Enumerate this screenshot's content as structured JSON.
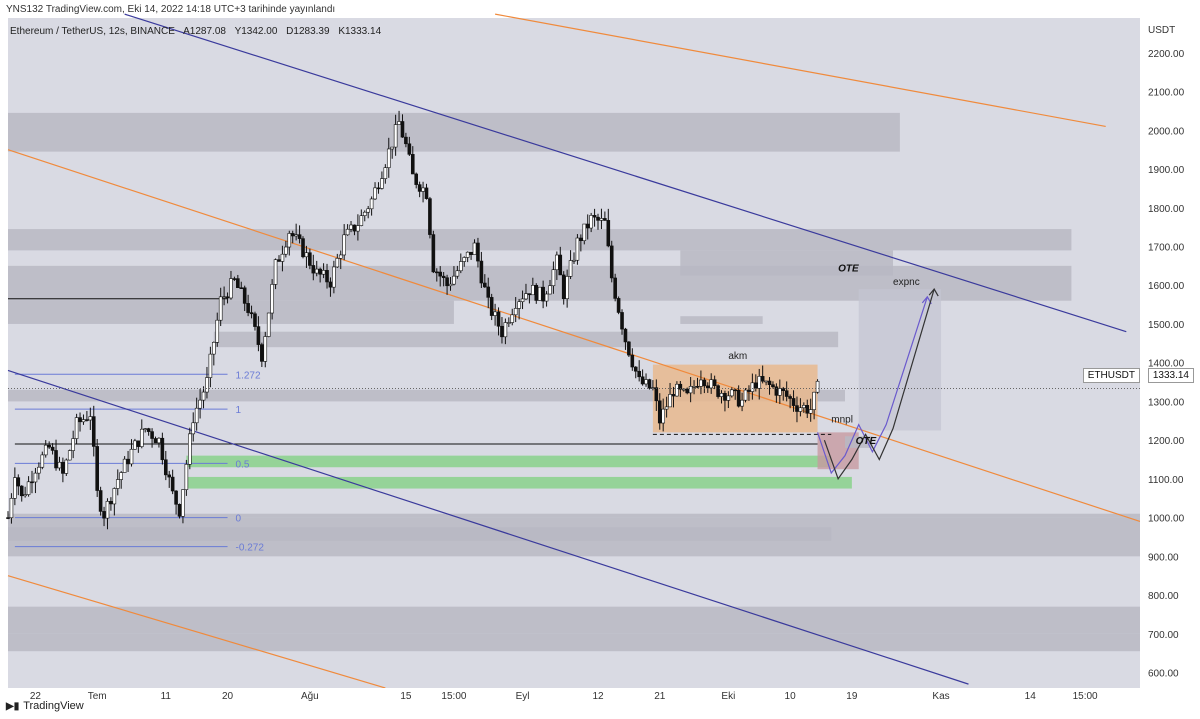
{
  "header": {
    "publish_line": "YNS132 TradingView.com, Eki 14, 2022 14:18 UTC+3 tarihinde yayınlandı",
    "symbol_line": "Ethereum / TetherUS, 12s, BINANCE",
    "ohlc": {
      "open": "A1287.08",
      "high": "Y1342.00",
      "low": "D1283.39",
      "close": "K1333.14"
    }
  },
  "footer": {
    "brand": "TradingView"
  },
  "price_axis": {
    "unit": "USDT",
    "symbol_tag": "ETHUSDT",
    "last_price": "1333.14"
  },
  "colors": {
    "background": "#d9dae3",
    "candle": "#111111",
    "zone_gray": "#b8b9c3",
    "zone_green": "#8dd18f",
    "zone_orange": "#e8b88e",
    "zone_pink": "#c79aa0",
    "orange_line": "#f08a3c",
    "blue_line": "#3a3a9c",
    "fib_line": "#6a7bd6"
  },
  "chart_data": {
    "type": "candlestick",
    "ylim": [
      560,
      2290
    ],
    "ylabel_unit": "USDT",
    "y_ticks": [
      600,
      700,
      800,
      900,
      1000,
      1100,
      1200,
      1300,
      1400,
      1500,
      1600,
      1700,
      1800,
      1900,
      2000,
      2100,
      2200
    ],
    "x_ticks": [
      {
        "label": "22",
        "date": "2022-06-22"
      },
      {
        "label": "Tem",
        "date": "2022-07-01"
      },
      {
        "label": "11",
        "date": "2022-07-11"
      },
      {
        "label": "20",
        "date": "2022-07-20"
      },
      {
        "label": "Ağu",
        "date": "2022-08-01"
      },
      {
        "label": "15",
        "date": "2022-08-15"
      },
      {
        "label": "15:00",
        "date": "2022-08-22"
      },
      {
        "label": "Eyl",
        "date": "2022-09-01"
      },
      {
        "label": "12",
        "date": "2022-09-12"
      },
      {
        "label": "21",
        "date": "2022-09-21"
      },
      {
        "label": "Eki",
        "date": "2022-10-01"
      },
      {
        "label": "10",
        "date": "2022-10-10"
      },
      {
        "label": "19",
        "date": "2022-10-19"
      },
      {
        "label": "Kas",
        "date": "2022-11-01"
      },
      {
        "label": "14",
        "date": "2022-11-14"
      },
      {
        "label": "15:00",
        "date": "2022-11-22"
      }
    ],
    "price_path": [
      [
        "2022-06-18",
        1000
      ],
      [
        "2022-06-19",
        1120
      ],
      [
        "2022-06-20",
        1050
      ],
      [
        "2022-06-22",
        1130
      ],
      [
        "2022-06-24",
        1180
      ],
      [
        "2022-06-26",
        1110
      ],
      [
        "2022-06-28",
        1240
      ],
      [
        "2022-06-30",
        1270
      ],
      [
        "2022-07-01",
        1060
      ],
      [
        "2022-07-02",
        1010
      ],
      [
        "2022-07-04",
        1100
      ],
      [
        "2022-07-06",
        1170
      ],
      [
        "2022-07-08",
        1230
      ],
      [
        "2022-07-10",
        1200
      ],
      [
        "2022-07-12",
        1060
      ],
      [
        "2022-07-13",
        1020
      ],
      [
        "2022-07-15",
        1260
      ],
      [
        "2022-07-17",
        1350
      ],
      [
        "2022-07-19",
        1560
      ],
      [
        "2022-07-21",
        1610
      ],
      [
        "2022-07-23",
        1540
      ],
      [
        "2022-07-25",
        1420
      ],
      [
        "2022-07-27",
        1650
      ],
      [
        "2022-07-29",
        1740
      ],
      [
        "2022-07-31",
        1690
      ],
      [
        "2022-08-02",
        1630
      ],
      [
        "2022-08-04",
        1610
      ],
      [
        "2022-08-06",
        1720
      ],
      [
        "2022-08-08",
        1760
      ],
      [
        "2022-08-10",
        1820
      ],
      [
        "2022-08-12",
        1920
      ],
      [
        "2022-08-14",
        2020
      ],
      [
        "2022-08-15",
        1960
      ],
      [
        "2022-08-16",
        1880
      ],
      [
        "2022-08-18",
        1840
      ],
      [
        "2022-08-19",
        1650
      ],
      [
        "2022-08-21",
        1600
      ],
      [
        "2022-08-23",
        1650
      ],
      [
        "2022-08-25",
        1700
      ],
      [
        "2022-08-27",
        1550
      ],
      [
        "2022-08-29",
        1480
      ],
      [
        "2022-08-31",
        1560
      ],
      [
        "2022-09-02",
        1590
      ],
      [
        "2022-09-04",
        1570
      ],
      [
        "2022-09-06",
        1660
      ],
      [
        "2022-09-07",
        1580
      ],
      [
        "2022-09-09",
        1710
      ],
      [
        "2022-09-11",
        1770
      ],
      [
        "2022-09-13",
        1760
      ],
      [
        "2022-09-14",
        1620
      ],
      [
        "2022-09-16",
        1460
      ],
      [
        "2022-09-18",
        1350
      ],
      [
        "2022-09-20",
        1330
      ],
      [
        "2022-09-21",
        1250
      ],
      [
        "2022-09-23",
        1330
      ],
      [
        "2022-09-25",
        1310
      ],
      [
        "2022-09-27",
        1370
      ],
      [
        "2022-09-29",
        1330
      ],
      [
        "2022-10-01",
        1320
      ],
      [
        "2022-10-03",
        1300
      ],
      [
        "2022-10-05",
        1350
      ],
      [
        "2022-10-07",
        1340
      ],
      [
        "2022-10-09",
        1320
      ],
      [
        "2022-10-11",
        1290
      ],
      [
        "2022-10-13",
        1280
      ],
      [
        "2022-10-14",
        1333
      ]
    ],
    "annotations": [
      "1.272",
      "1",
      "0.5",
      "0",
      "-0.272",
      "akm",
      "mnpl",
      "OTE",
      "OTE",
      "expnc"
    ],
    "fib_levels": [
      {
        "label": "1.272",
        "value": 1370
      },
      {
        "label": "1",
        "value": 1280
      },
      {
        "label": "0.5",
        "value": 1140
      },
      {
        "label": "0",
        "value": 1000
      },
      {
        "label": "-0.272",
        "value": 925
      }
    ],
    "zones": [
      {
        "kind": "gray",
        "y1": 1945,
        "y2": 2045,
        "x1": "2022-06-18",
        "x2": "2022-10-26"
      },
      {
        "kind": "gray",
        "y1": 1690,
        "y2": 1745,
        "x1": "2022-06-18",
        "x2": "2022-11-20"
      },
      {
        "kind": "gray",
        "y1": 1560,
        "y2": 1650,
        "x1": "2022-06-18",
        "x2": "2022-11-20"
      },
      {
        "kind": "gray",
        "y1": 1500,
        "y2": 1560,
        "x1": "2022-06-18",
        "x2": "2022-08-22"
      },
      {
        "kind": "gray",
        "y1": 1440,
        "y2": 1480,
        "x1": "2022-07-18",
        "x2": "2022-10-17"
      },
      {
        "kind": "gray",
        "y1": 1300,
        "y2": 1330,
        "x1": "2022-06-18",
        "x2": "2022-10-18"
      },
      {
        "kind": "gray",
        "y1": 1000,
        "y2": 1010,
        "x1": "2022-06-18",
        "x2": "2022-11-30"
      },
      {
        "kind": "gray",
        "y1": 900,
        "y2": 1000,
        "x1": "2022-06-18",
        "x2": "2022-11-30"
      },
      {
        "kind": "gray",
        "y1": 940,
        "y2": 975,
        "x1": "2022-06-18",
        "x2": "2022-10-16"
      },
      {
        "kind": "gray",
        "y1": 700,
        "y2": 770,
        "x1": "2022-06-18",
        "x2": "2022-11-30"
      },
      {
        "kind": "gray",
        "y1": 655,
        "y2": 700,
        "x1": "2022-06-18",
        "x2": "2022-11-30"
      },
      {
        "kind": "gray",
        "y1": 1625,
        "y2": 1690,
        "x1": "2022-09-24",
        "x2": "2022-10-25"
      },
      {
        "kind": "gray",
        "y1": 1500,
        "y2": 1520,
        "x1": "2022-09-24",
        "x2": "2022-10-06"
      },
      {
        "kind": "green",
        "y1": 1130,
        "y2": 1160,
        "x1": "2022-07-14",
        "x2": "2022-10-16"
      },
      {
        "kind": "green",
        "y1": 1075,
        "y2": 1105,
        "x1": "2022-07-14",
        "x2": "2022-10-19"
      },
      {
        "kind": "orange",
        "y1": 1220,
        "y2": 1395,
        "x1": "2022-09-20",
        "x2": "2022-10-14"
      },
      {
        "kind": "pink",
        "y1": 1125,
        "y2": 1220,
        "x1": "2022-10-14",
        "x2": "2022-10-20"
      },
      {
        "kind": "gray",
        "y1": 1180,
        "y2": 1210,
        "x1": "2022-10-18",
        "x2": "2022-10-22"
      },
      {
        "kind": "light",
        "y1": 1225,
        "y2": 1590,
        "x1": "2022-10-20",
        "x2": "2022-11-01"
      }
    ],
    "trend_lines": [
      {
        "color": "orange_line",
        "p1": [
          "2022-08-28",
          2300
        ],
        "p2": [
          "2022-11-25",
          2010
        ]
      },
      {
        "color": "orange_line",
        "p1": [
          "2022-06-18",
          1950
        ],
        "p2": [
          "2022-11-30",
          990
        ]
      },
      {
        "color": "orange_line",
        "p1": [
          "2022-06-18",
          850
        ],
        "p2": [
          "2022-08-12",
          560
        ]
      },
      {
        "color": "blue_line",
        "p1": [
          "2022-07-05",
          2300
        ],
        "p2": [
          "2022-11-28",
          1480
        ]
      },
      {
        "color": "blue_line",
        "p1": [
          "2022-06-18",
          1380
        ],
        "p2": [
          "2022-11-05",
          570
        ]
      }
    ],
    "horizontal_lines": [
      {
        "y": 1565,
        "x1": "2022-06-18",
        "x2": "2022-07-20",
        "color": "#111111"
      },
      {
        "y": 1190,
        "x1": "2022-06-19",
        "x2": "2022-10-14",
        "color": "#111111"
      },
      {
        "y": 1215,
        "x1": "2022-09-20",
        "x2": "2022-10-16",
        "color": "#111111",
        "dashed": true
      }
    ],
    "projection_paths": [
      {
        "color": "#6a5acd",
        "points": [
          [
            "2022-10-14",
            1220
          ],
          [
            "2022-10-16",
            1115
          ],
          [
            "2022-10-18",
            1160
          ],
          [
            "2022-10-20",
            1240
          ],
          [
            "2022-10-22",
            1170
          ],
          [
            "2022-10-24",
            1240
          ],
          [
            "2022-10-30",
            1570
          ]
        ]
      },
      {
        "color": "#333333",
        "points": [
          [
            "2022-10-15",
            1200
          ],
          [
            "2022-10-17",
            1100
          ],
          [
            "2022-10-19",
            1150
          ],
          [
            "2022-10-21",
            1215
          ],
          [
            "2022-10-23",
            1150
          ],
          [
            "2022-10-25",
            1230
          ],
          [
            "2022-10-31",
            1590
          ]
        ]
      }
    ]
  }
}
